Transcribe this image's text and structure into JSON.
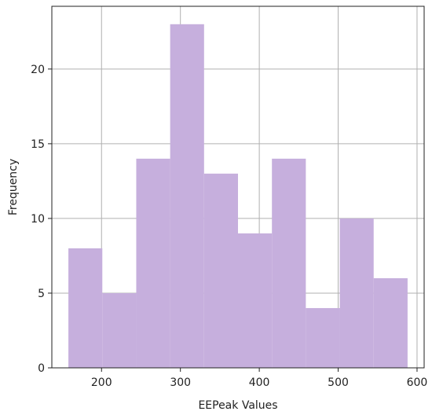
{
  "chart_data": {
    "type": "bar",
    "subtype": "histogram",
    "title": "",
    "xlabel": "EEPeak Values",
    "ylabel": "Frequency",
    "bin_edges": [
      158,
      201,
      244,
      287,
      330,
      373,
      416,
      459,
      502,
      545,
      588
    ],
    "values": [
      8,
      5,
      14,
      23,
      13,
      9,
      14,
      4,
      10,
      6
    ],
    "xlim": [
      137,
      609
    ],
    "ylim": [
      0,
      24.2
    ],
    "xticks": [
      200,
      300,
      400,
      500,
      600
    ],
    "yticks": [
      0,
      5,
      10,
      15,
      20
    ],
    "grid": true,
    "bar_color": "#c6afdd",
    "grid_color": "#b0b0b0"
  }
}
